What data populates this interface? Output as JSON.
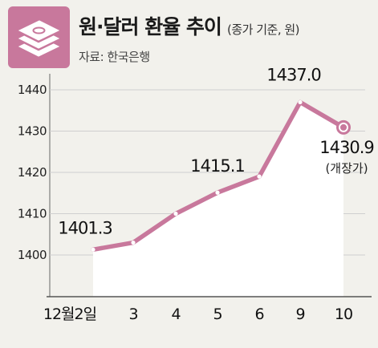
{
  "header": {
    "title": "원·달러 환율 추이",
    "subtitle": "(종가 기준, 원)",
    "source": "자료: 한국은행",
    "logo_icon": "money-stack-icon"
  },
  "colors": {
    "line": "#c8789c",
    "area": "#ffffff",
    "background": "#f2f1ec",
    "logo": "#c8789c"
  },
  "chart_data": {
    "type": "line",
    "title": "원·달러 환율 추이",
    "subtitle": "(종가 기준, 원)",
    "categories": [
      "12월 2일",
      "3",
      "4",
      "5",
      "6",
      "9",
      "10"
    ],
    "values": [
      1401.3,
      1403.0,
      1410.0,
      1415.1,
      1419.0,
      1437.0,
      1430.9
    ],
    "ylim": [
      1395,
      1445
    ],
    "yticks": [
      1400,
      1410,
      1420,
      1430,
      1440
    ],
    "grid": true,
    "labels": [
      {
        "index": 0,
        "text": "1401.3"
      },
      {
        "index": 3,
        "text": "1415.1"
      },
      {
        "index": 5,
        "text": "1437.0"
      },
      {
        "index": 6,
        "text": "1430.9",
        "note": "(개장가)"
      }
    ]
  }
}
